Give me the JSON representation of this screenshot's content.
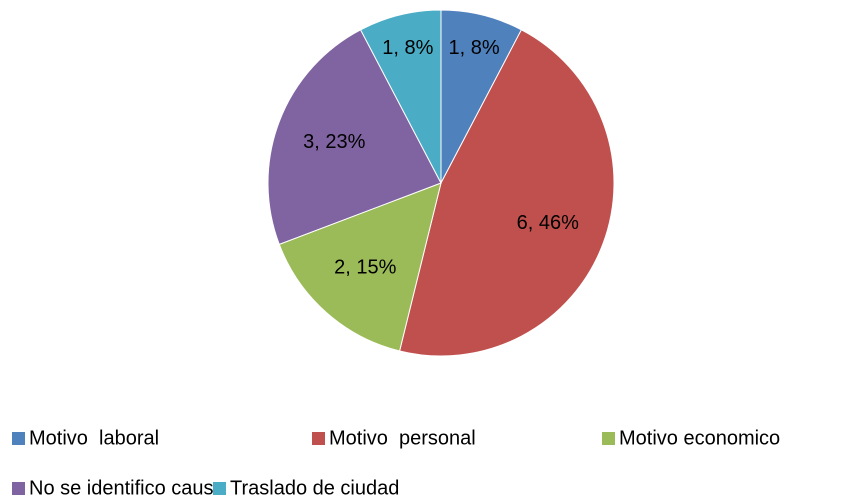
{
  "chart_data": {
    "type": "pie",
    "categories": [
      "Motivo  laboral",
      "Motivo  personal",
      "Motivo economico",
      "No se identifico causa",
      "Traslado de ciudad"
    ],
    "values": [
      1,
      6,
      2,
      3,
      1
    ],
    "value_labels": [
      "1, 8%",
      "6, 46%",
      "2, 15%",
      "3, 23%",
      "1, 8%"
    ],
    "colors": [
      "#4f81bd",
      "#c0504d",
      "#9bbb59",
      "#8064a2",
      "#4bacc6"
    ],
    "legend": "bottom"
  }
}
